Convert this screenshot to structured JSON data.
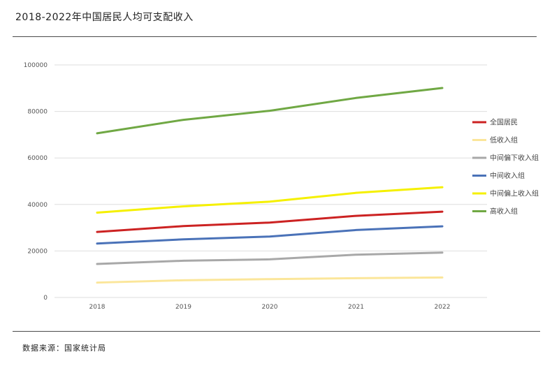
{
  "title": "2018-2022年中国居民人均可支配收入",
  "source": "数据来源：国家统计局",
  "chart_data": {
    "type": "line",
    "x": [
      "2018",
      "2019",
      "2020",
      "2021",
      "2022"
    ],
    "ylim": [
      0,
      100000
    ],
    "yticks": [
      0,
      20000,
      40000,
      60000,
      80000,
      100000
    ],
    "ytick_labels": [
      "0",
      "20000",
      "40000",
      "60000",
      "80000",
      "100000"
    ],
    "grid": true,
    "legend_placement": "right",
    "series": [
      {
        "name": "全国居民",
        "color": "#cc2222",
        "values": [
          28200,
          30700,
          32200,
          35100,
          36900
        ]
      },
      {
        "name": "低收入组",
        "color": "#fbe69a",
        "values": [
          6400,
          7400,
          7900,
          8300,
          8600
        ]
      },
      {
        "name": "中间偏下收入组",
        "color": "#a8a8a8",
        "values": [
          14400,
          15800,
          16400,
          18400,
          19300
        ]
      },
      {
        "name": "中间收入组",
        "color": "#4a72b8",
        "values": [
          23200,
          25000,
          26200,
          29000,
          30600
        ]
      },
      {
        "name": "中间偏上收入组",
        "color": "#f5f000",
        "values": [
          36500,
          39200,
          41200,
          45000,
          47400
        ]
      },
      {
        "name": "高收入组",
        "color": "#70a844",
        "values": [
          70600,
          76400,
          80300,
          85800,
          90100
        ]
      }
    ]
  }
}
